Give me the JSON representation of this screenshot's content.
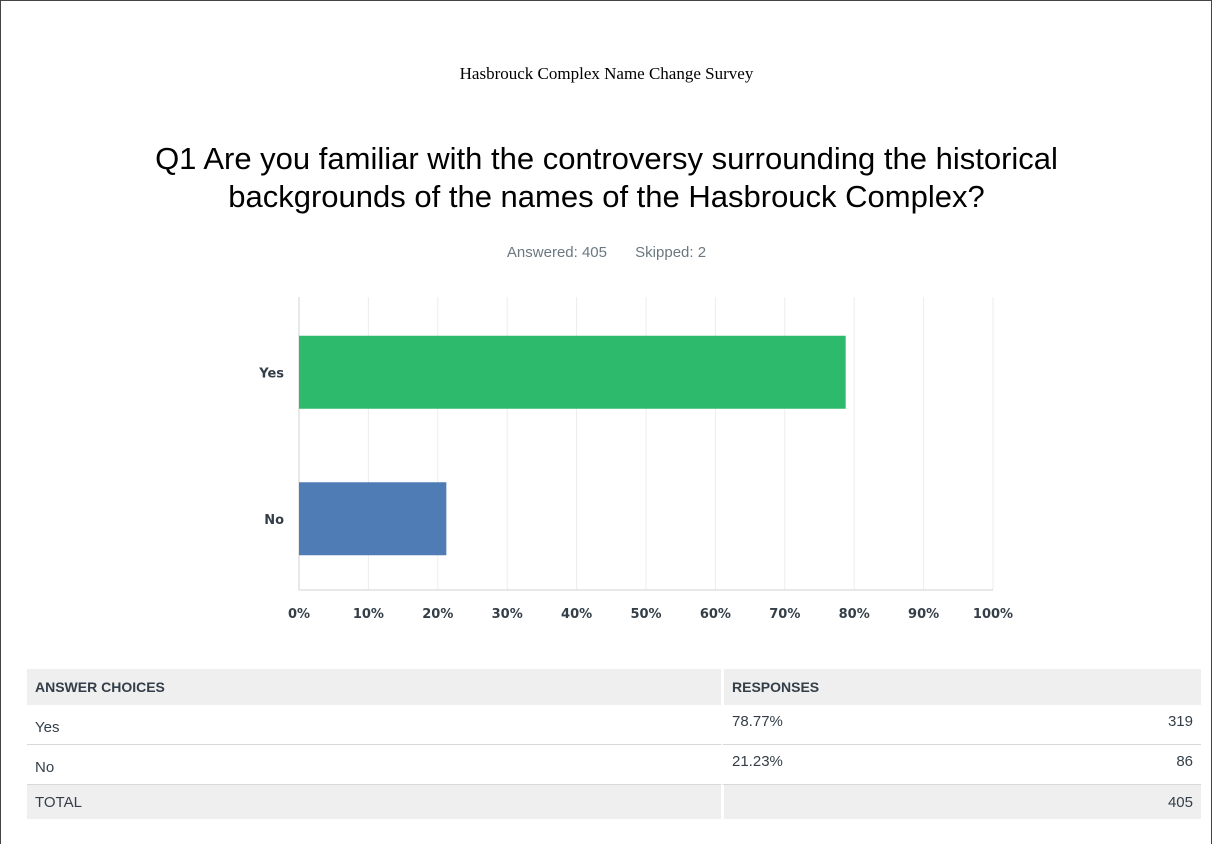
{
  "survey_title": "Hasbrouck Complex Name Change Survey",
  "question": {
    "line1": "Q1 Are you familiar with the controversy surrounding the historical",
    "line2": "backgrounds of the names of the Hasbrouck Complex?"
  },
  "stats": {
    "answered": "Answered: 405",
    "skipped": "Skipped: 2"
  },
  "chart_data": {
    "type": "bar",
    "orientation": "horizontal",
    "categories": [
      "Yes",
      "No"
    ],
    "values": [
      78.77,
      21.23
    ],
    "colors": [
      "#2eba6c",
      "#507cb6"
    ],
    "xlim": [
      0,
      100
    ],
    "x_ticks": [
      "0%",
      "10%",
      "20%",
      "30%",
      "40%",
      "50%",
      "60%",
      "70%",
      "80%",
      "90%",
      "100%"
    ],
    "grid": true
  },
  "table": {
    "headers": {
      "choices": "ANSWER CHOICES",
      "responses": "RESPONSES"
    },
    "rows": [
      {
        "choice": "Yes",
        "percent": "78.77%",
        "count": "319"
      },
      {
        "choice": "No",
        "percent": "21.23%",
        "count": "86"
      }
    ],
    "total": {
      "label": "TOTAL",
      "count": "405"
    }
  }
}
